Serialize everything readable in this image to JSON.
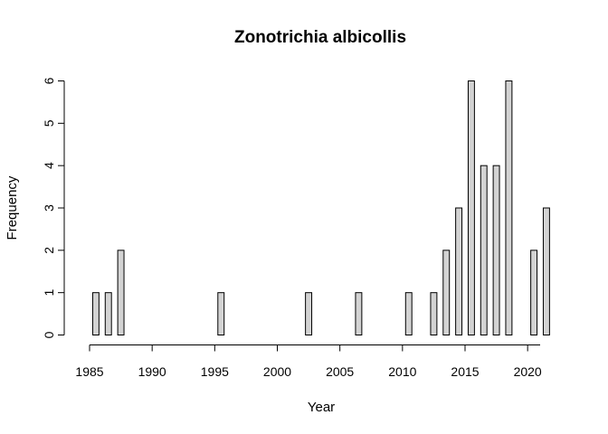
{
  "chart_data": {
    "type": "bar",
    "title": "Zonotrichia albicollis",
    "xlabel": "Year",
    "ylabel": "Frequency",
    "xlim": [
      1985,
      2021
    ],
    "ylim": [
      0,
      6
    ],
    "x_ticks": [
      "1985",
      "1990",
      "1995",
      "2000",
      "2005",
      "2010",
      "2015",
      "2020"
    ],
    "y_ticks": [
      "0",
      "1",
      "2",
      "3",
      "4",
      "5",
      "6"
    ],
    "grid": false,
    "categories": [
      1985,
      1986,
      1987,
      1988,
      1989,
      1990,
      1991,
      1992,
      1993,
      1994,
      1995,
      1996,
      1997,
      1998,
      1999,
      2000,
      2001,
      2002,
      2003,
      2004,
      2005,
      2006,
      2007,
      2008,
      2009,
      2010,
      2011,
      2012,
      2013,
      2014,
      2015,
      2016,
      2017,
      2018,
      2019,
      2020,
      2021
    ],
    "values": [
      1,
      1,
      2,
      0,
      0,
      0,
      0,
      0,
      0,
      0,
      1,
      0,
      0,
      0,
      0,
      0,
      0,
      1,
      0,
      0,
      0,
      1,
      0,
      0,
      0,
      1,
      0,
      1,
      2,
      3,
      6,
      4,
      4,
      6,
      0,
      2,
      3
    ]
  }
}
